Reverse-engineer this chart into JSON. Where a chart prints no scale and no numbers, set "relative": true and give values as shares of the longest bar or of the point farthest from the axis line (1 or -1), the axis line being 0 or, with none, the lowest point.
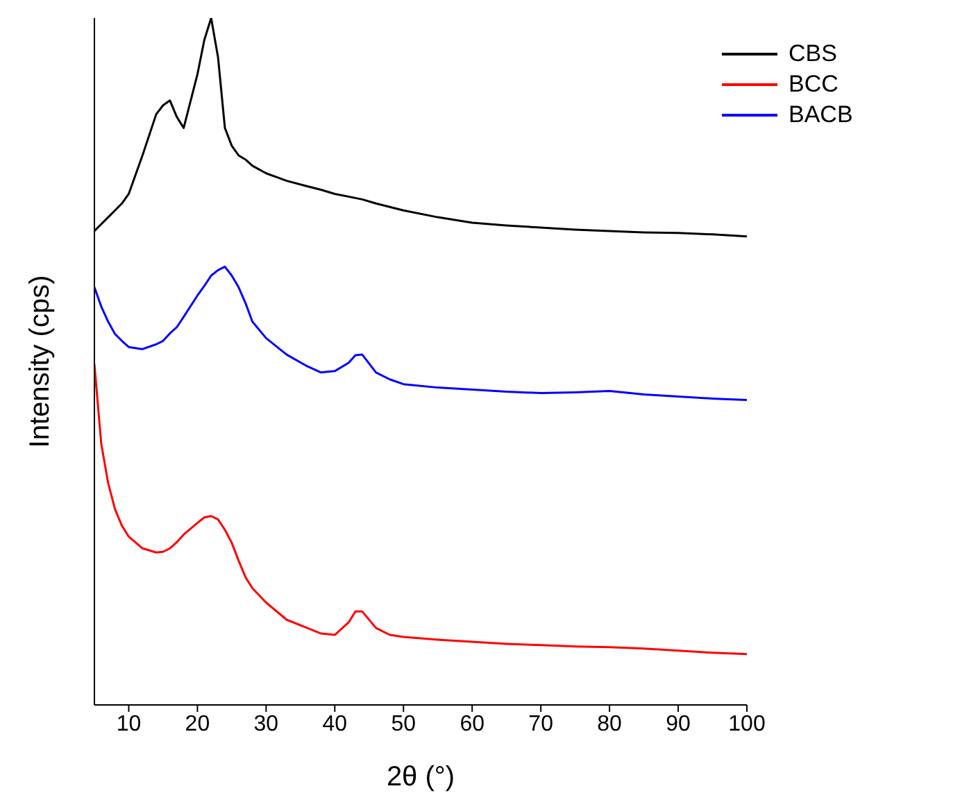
{
  "chart_data": {
    "type": "line",
    "xlabel": "2θ (°)",
    "ylabel": "Intensity (cps)",
    "relative": true,
    "xlim": [
      5,
      100
    ],
    "xticks": [
      10,
      20,
      30,
      40,
      50,
      60,
      70,
      80,
      90,
      100
    ],
    "grid": false,
    "legend": "top right",
    "marker": "none",
    "line_style": "solid",
    "x": [
      5,
      6,
      7,
      8,
      9,
      10,
      12,
      14,
      15,
      16,
      17,
      18,
      20,
      21,
      22,
      23,
      24,
      25,
      26,
      27,
      28,
      30,
      33,
      36,
      38,
      40,
      42,
      43,
      44,
      46,
      48,
      50,
      55,
      60,
      65,
      70,
      75,
      80,
      85,
      90,
      95,
      100
    ],
    "series": [
      {
        "name": "CBS",
        "color": "#000000",
        "values": [
          0.69,
          0.7,
          0.71,
          0.72,
          0.73,
          0.744,
          0.8,
          0.86,
          0.873,
          0.88,
          0.856,
          0.84,
          0.918,
          0.968,
          1.0,
          0.943,
          0.84,
          0.814,
          0.8,
          0.794,
          0.785,
          0.774,
          0.763,
          0.755,
          0.75,
          0.744,
          0.74,
          0.738,
          0.736,
          0.73,
          0.725,
          0.72,
          0.71,
          0.702,
          0.698,
          0.695,
          0.692,
          0.69,
          0.688,
          0.687,
          0.685,
          0.682
        ]
      },
      {
        "name": "BCC",
        "color": "#ff0000",
        "values": [
          0.496,
          0.38,
          0.323,
          0.285,
          0.261,
          0.245,
          0.228,
          0.222,
          0.223,
          0.228,
          0.237,
          0.248,
          0.265,
          0.273,
          0.275,
          0.27,
          0.255,
          0.236,
          0.21,
          0.186,
          0.17,
          0.149,
          0.124,
          0.112,
          0.104,
          0.102,
          0.12,
          0.136,
          0.136,
          0.112,
          0.102,
          0.099,
          0.095,
          0.092,
          0.089,
          0.087,
          0.085,
          0.084,
          0.082,
          0.079,
          0.076,
          0.074
        ]
      },
      {
        "name": "BACB",
        "color": "#0000ff",
        "values": [
          0.608,
          0.58,
          0.558,
          0.54,
          0.53,
          0.521,
          0.518,
          0.525,
          0.53,
          0.541,
          0.55,
          0.565,
          0.596,
          0.61,
          0.625,
          0.633,
          0.638,
          0.625,
          0.608,
          0.585,
          0.558,
          0.534,
          0.51,
          0.493,
          0.484,
          0.486,
          0.498,
          0.509,
          0.51,
          0.484,
          0.474,
          0.467,
          0.462,
          0.459,
          0.456,
          0.454,
          0.455,
          0.457,
          0.452,
          0.449,
          0.446,
          0.444
        ]
      }
    ]
  }
}
